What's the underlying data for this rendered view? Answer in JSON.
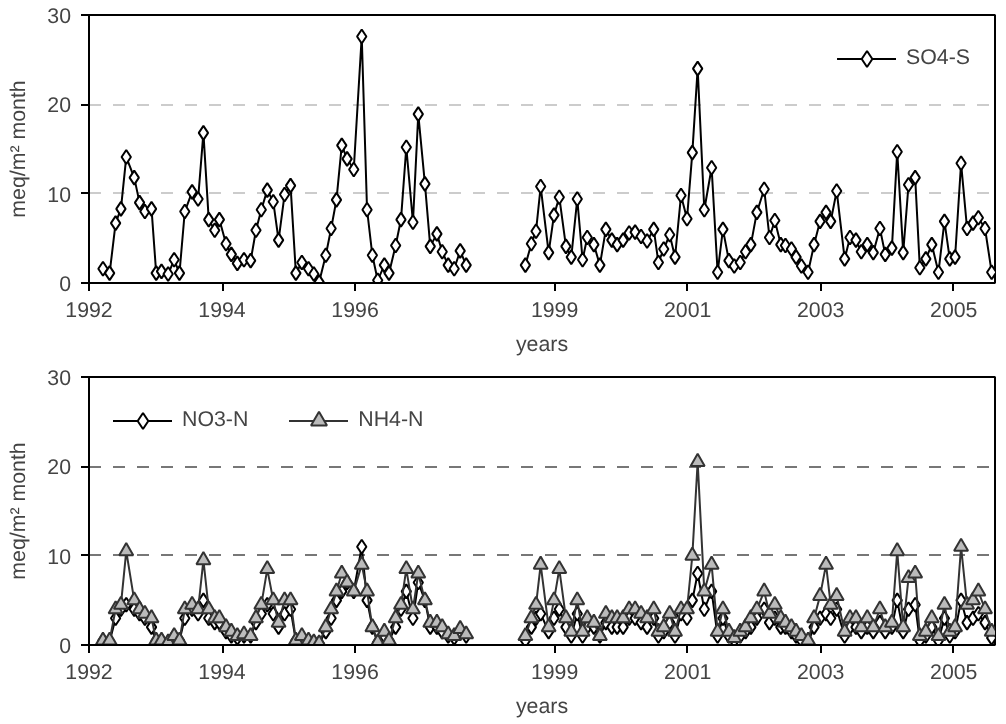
{
  "chart_data": [
    {
      "type": "line",
      "xlabel": "years",
      "ylabel": "meq/m² month",
      "xlim": [
        1992,
        2005.62
      ],
      "ylim": [
        0,
        30
      ],
      "xticks": [
        1992,
        1994,
        1996,
        1999,
        2001,
        2003,
        2005
      ],
      "yticks": [
        0,
        10,
        20,
        30
      ],
      "grid": "y",
      "legend": "top right",
      "line_style": "solid",
      "x": [
        1992.21,
        1992.31,
        1992.4,
        1992.48,
        1992.56,
        1992.68,
        1992.76,
        1992.84,
        1992.94,
        1993.01,
        1993.09,
        1993.19,
        1993.28,
        1993.36,
        1993.44,
        1993.55,
        1993.64,
        1993.72,
        1993.8,
        1993.89,
        1993.96,
        1994.06,
        1994.14,
        1994.23,
        1994.33,
        1994.43,
        1994.51,
        1994.59,
        1994.68,
        1994.77,
        1994.85,
        1994.94,
        1995.03,
        1995.11,
        1995.2,
        1995.3,
        1995.38,
        1995.46,
        1995.56,
        1995.64,
        1995.72,
        1995.8,
        1995.88,
        1995.98,
        1996.1,
        1996.18,
        1996.26,
        1996.34,
        1996.44,
        1996.51,
        1996.61,
        1996.69,
        1996.77,
        1996.87,
        1996.95,
        1997.05,
        1997.13,
        1997.23,
        1997.31,
        1997.4,
        1997.49,
        1997.58,
        1997.67,
        1998.0,
        1998.56,
        1998.65,
        1998.72,
        1998.79,
        1998.91,
        1998.99,
        1999.07,
        1999.17,
        1999.25,
        1999.34,
        1999.42,
        1999.49,
        1999.59,
        1999.68,
        1999.77,
        1999.86,
        1999.94,
        2000.03,
        2000.12,
        2000.21,
        2000.3,
        2000.39,
        2000.49,
        2000.56,
        2000.64,
        2000.73,
        2000.81,
        2000.9,
        2000.99,
        2001.07,
        2001.15,
        2001.25,
        2001.36,
        2001.45,
        2001.53,
        2001.62,
        2001.7,
        2001.79,
        2001.87,
        2001.95,
        2002.04,
        2002.15,
        2002.23,
        2002.31,
        2002.4,
        2002.47,
        2002.56,
        2002.63,
        2002.71,
        2002.81,
        2002.9,
        2002.99,
        2003.08,
        2003.15,
        2003.24,
        2003.36,
        2003.44,
        2003.53,
        2003.61,
        2003.7,
        2003.79,
        2003.89,
        2003.97,
        2004.07,
        2004.15,
        2004.24,
        2004.32,
        2004.42,
        2004.49,
        2004.58,
        2004.67,
        2004.77,
        2004.86,
        2004.94,
        2005.02,
        2005.11,
        2005.2,
        2005.29,
        2005.37,
        2005.47,
        2005.57
      ],
      "series": [
        {
          "name": "SO4-S",
          "color": "#000000",
          "marker": "diamond",
          "values": [
            1.6,
            1.1,
            6.7,
            8.3,
            14.1,
            11.8,
            9.0,
            8.0,
            8.3,
            1.1,
            1.3,
            1.0,
            2.6,
            1.1,
            8.0,
            10.2,
            9.4,
            16.8,
            7.1,
            5.9,
            7.1,
            4.4,
            3.2,
            2.2,
            2.6,
            2.5,
            5.9,
            8.2,
            10.4,
            9.1,
            4.8,
            9.9,
            10.9,
            1.1,
            2.3,
            1.6,
            1.0,
            0.1,
            3.1,
            6.1,
            9.3,
            15.4,
            13.9,
            12.7,
            27.6,
            8.2,
            3.1,
            0.3,
            2.0,
            1.1,
            4.2,
            7.1,
            15.2,
            6.8,
            18.9,
            11.1,
            4.1,
            5.5,
            3.5,
            2.0,
            1.6,
            3.6,
            2.0,
            null,
            2.0,
            4.4,
            5.8,
            10.8,
            3.4,
            7.6,
            9.6,
            4.1,
            2.9,
            9.4,
            2.6,
            5.1,
            4.3,
            2.0,
            6.0,
            4.8,
            4.3,
            4.8,
            5.6,
            5.7,
            5.2,
            4.7,
            6.0,
            2.3,
            3.8,
            5.4,
            2.9,
            9.8,
            7.2,
            14.6,
            24.0,
            8.2,
            12.9,
            1.2,
            6.0,
            2.5,
            1.9,
            2.3,
            3.5,
            4.3,
            7.9,
            10.5,
            5.1,
            7.0,
            4.3,
            4.2,
            3.8,
            2.9,
            1.9,
            1.2,
            4.3,
            6.9,
            7.9,
            6.9,
            10.3,
            2.7,
            5.1,
            4.8,
            3.5,
            4.3,
            3.4,
            6.1,
            3.2,
            3.9,
            14.7,
            3.4,
            11.0,
            11.8,
            1.7,
            2.7,
            4.3,
            1.2,
            6.9,
            2.7,
            2.9,
            13.4,
            6.1,
            6.7,
            7.3,
            6.1,
            1.2
          ]
        }
      ]
    },
    {
      "type": "line",
      "xlabel": "years",
      "ylabel": "meq/m² month",
      "xlim": [
        1992,
        2005.62
      ],
      "ylim": [
        0,
        30
      ],
      "xticks": [
        1992,
        1994,
        1996,
        1999,
        2001,
        2003,
        2005
      ],
      "yticks": [
        0,
        10,
        20,
        30
      ],
      "grid": "y",
      "legend": "top left",
      "line_style": "solid",
      "x": [
        1992.21,
        1992.31,
        1992.4,
        1992.48,
        1992.56,
        1992.68,
        1992.76,
        1992.84,
        1992.94,
        1993.01,
        1993.09,
        1993.19,
        1993.28,
        1993.36,
        1993.44,
        1993.55,
        1993.64,
        1993.72,
        1993.8,
        1993.89,
        1993.96,
        1994.06,
        1994.14,
        1994.23,
        1994.33,
        1994.43,
        1994.51,
        1994.59,
        1994.68,
        1994.77,
        1994.85,
        1994.94,
        1995.03,
        1995.11,
        1995.2,
        1995.3,
        1995.38,
        1995.46,
        1995.56,
        1995.64,
        1995.72,
        1995.8,
        1995.88,
        1995.98,
        1996.1,
        1996.18,
        1996.26,
        1996.34,
        1996.44,
        1996.51,
        1996.61,
        1996.69,
        1996.77,
        1996.87,
        1996.95,
        1997.05,
        1997.13,
        1997.23,
        1997.31,
        1997.4,
        1997.49,
        1997.58,
        1997.67,
        1998.0,
        1998.56,
        1998.65,
        1998.72,
        1998.79,
        1998.91,
        1998.99,
        1999.07,
        1999.17,
        1999.25,
        1999.34,
        1999.42,
        1999.49,
        1999.59,
        1999.68,
        1999.77,
        1999.86,
        1999.94,
        2000.03,
        2000.12,
        2000.21,
        2000.3,
        2000.39,
        2000.49,
        2000.56,
        2000.64,
        2000.73,
        2000.81,
        2000.9,
        2000.99,
        2001.07,
        2001.15,
        2001.25,
        2001.36,
        2001.45,
        2001.53,
        2001.62,
        2001.7,
        2001.79,
        2001.87,
        2001.95,
        2002.04,
        2002.15,
        2002.23,
        2002.31,
        2002.4,
        2002.47,
        2002.56,
        2002.63,
        2002.71,
        2002.81,
        2002.9,
        2002.99,
        2003.08,
        2003.15,
        2003.24,
        2003.36,
        2003.44,
        2003.53,
        2003.61,
        2003.7,
        2003.79,
        2003.89,
        2003.97,
        2004.07,
        2004.15,
        2004.24,
        2004.32,
        2004.42,
        2004.49,
        2004.58,
        2004.67,
        2004.77,
        2004.86,
        2004.94,
        2005.02,
        2005.11,
        2005.2,
        2005.29,
        2005.37,
        2005.47,
        2005.57
      ],
      "series": [
        {
          "name": "NO3-N",
          "color": "#000000",
          "marker": "diamond",
          "values": [
            0.5,
            0.4,
            3,
            4,
            4.5,
            4,
            3.5,
            3,
            2,
            0.5,
            0.5,
            0.3,
            1,
            0.5,
            3,
            4,
            3.5,
            5,
            3,
            2.5,
            2.5,
            1.5,
            1,
            0.8,
            1,
            1,
            2.5,
            3.5,
            4.5,
            3.5,
            2,
            3.5,
            4,
            0.5,
            0.8,
            0.5,
            0.3,
            0.2,
            1.5,
            3,
            5,
            6,
            7,
            6,
            11,
            5,
            2,
            0.3,
            1,
            0.5,
            2,
            4,
            6,
            3,
            7,
            5,
            2,
            2,
            1.5,
            1,
            0.8,
            1.5,
            1,
            null,
            0.5,
            2,
            3,
            3.5,
            1.5,
            3,
            4,
            2,
            1,
            3.5,
            1,
            2,
            2,
            1,
            2.5,
            2,
            2,
            2,
            3,
            3,
            2.5,
            2,
            3,
            1,
            1.5,
            2.5,
            1,
            3.5,
            3,
            5,
            8,
            4,
            6,
            1,
            3,
            1,
            0.5,
            1,
            1.5,
            2,
            3,
            4,
            2.5,
            3,
            2,
            2,
            1.5,
            1,
            0.5,
            0.3,
            2,
            3,
            3.5,
            3,
            4,
            1,
            2,
            2,
            1.5,
            2,
            1.5,
            2.5,
            1.5,
            2,
            5,
            1.5,
            4,
            4.5,
            0.5,
            1,
            2,
            0.5,
            3,
            1,
            1.5,
            5,
            2.5,
            3,
            3.5,
            2.5,
            0.8
          ]
        },
        {
          "name": "NH4-N",
          "color": "#333333",
          "marker": "triangle",
          "values": [
            0.5,
            0.5,
            4,
            4.5,
            10.5,
            5,
            4,
            3.5,
            3,
            0.5,
            0.5,
            0.3,
            1,
            0.5,
            4,
            4.5,
            4,
            9.5,
            4,
            3,
            3,
            2,
            1.5,
            1,
            1.2,
            1,
            3,
            4.5,
            8.5,
            5,
            2.5,
            5,
            5,
            0.5,
            1,
            0.5,
            0.3,
            0.2,
            2,
            4,
            6,
            8,
            7,
            6,
            9,
            6,
            2,
            0.3,
            1.5,
            0.5,
            3,
            4.5,
            8.5,
            4,
            8,
            5,
            2.5,
            2.5,
            2,
            1.2,
            1,
            1.8,
            1.2,
            null,
            1,
            3,
            4.5,
            9,
            2,
            5,
            8.5,
            3,
            1.5,
            5,
            1.5,
            3,
            2.5,
            1,
            3.5,
            3,
            3,
            3,
            4,
            4,
            3.5,
            3,
            4,
            1.5,
            2,
            3.5,
            1.5,
            4,
            4,
            10,
            20.5,
            6,
            9,
            1.5,
            4,
            1.5,
            0.8,
            1.5,
            2,
            3,
            4,
            6,
            3.5,
            4.5,
            3,
            2.5,
            2,
            1.5,
            1,
            0.5,
            3,
            5.5,
            9,
            4.5,
            5.5,
            1.5,
            3,
            3,
            2,
            3,
            2,
            4,
            2,
            2.5,
            10.5,
            2,
            7.5,
            8,
            1,
            1.5,
            3,
            1,
            4.5,
            1.5,
            2,
            11,
            4.5,
            5,
            6,
            4,
            1.5
          ]
        }
      ]
    }
  ]
}
